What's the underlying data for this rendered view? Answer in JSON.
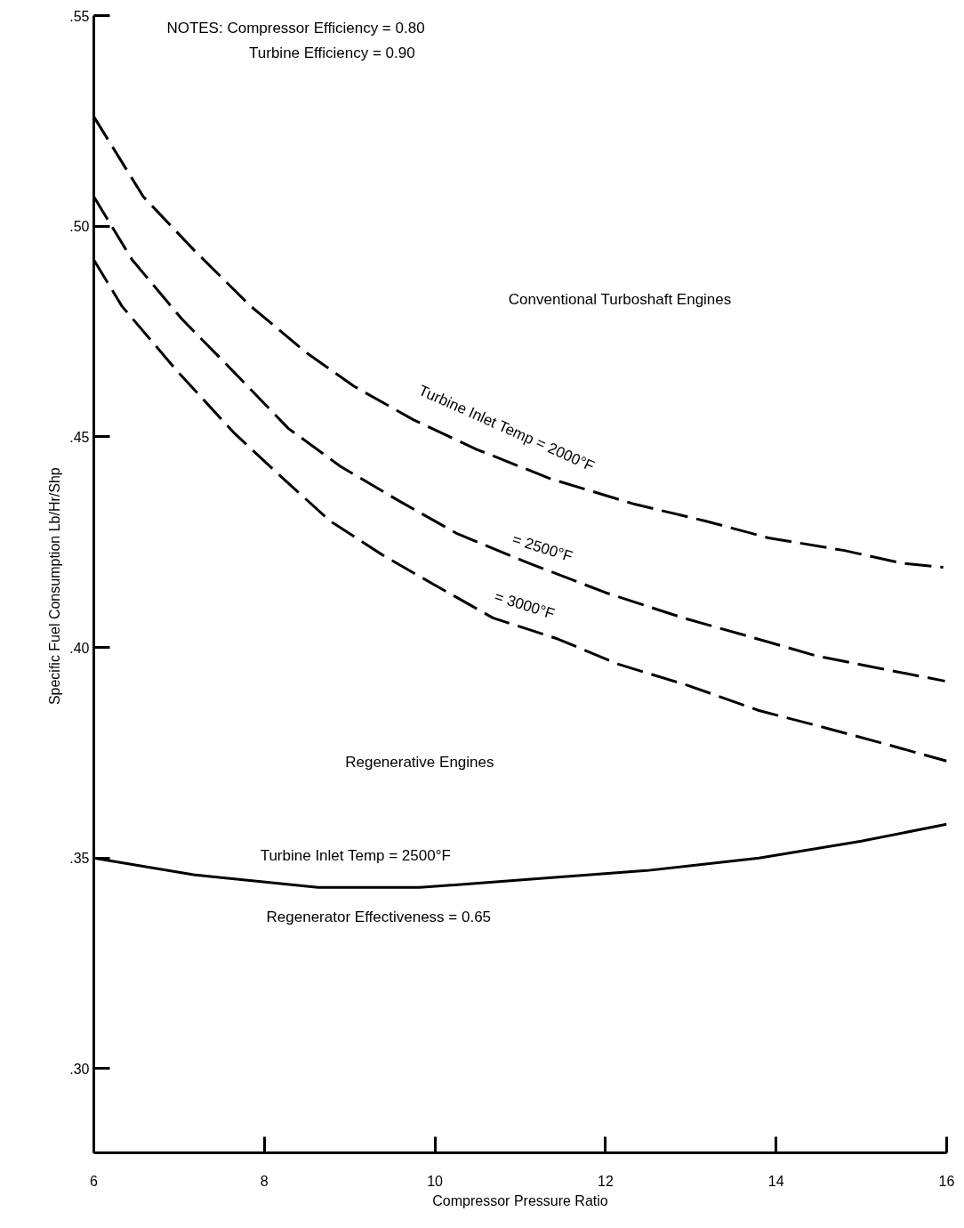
{
  "chart_data": {
    "type": "line",
    "xlabel": "Compressor Pressure Ratio",
    "ylabel": "Specific Fuel Consumption  Lb/Hr/Shp",
    "xlim": [
      6,
      16
    ],
    "ylim": [
      0.28,
      0.55
    ],
    "xticks": [
      6,
      8,
      10,
      12,
      14,
      16
    ],
    "yticks": [
      {
        "value": 0.3,
        "label": ".30"
      },
      {
        "value": 0.35,
        "label": ".35"
      },
      {
        "value": 0.4,
        "label": ".40"
      },
      {
        "value": 0.45,
        "label": ".45"
      },
      {
        "value": 0.5,
        "label": ".50"
      },
      {
        "value": 0.55,
        "label": ".55"
      }
    ],
    "grid": false,
    "marker": "none",
    "series": [
      {
        "name": "Turbine Inlet Temp = 2000°F",
        "color": "#000000",
        "line_style": "dashed",
        "x": [
          6,
          6.58,
          7.19,
          7.84,
          8.49,
          9.05,
          9.75,
          10.49,
          11.36,
          12.34,
          13.17,
          13.91,
          14.8,
          15.47,
          15.96
        ],
        "values": [
          0.526,
          0.507,
          0.494,
          0.481,
          0.47,
          0.462,
          0.454,
          0.447,
          0.44,
          0.434,
          0.43,
          0.426,
          0.423,
          0.42,
          0.419
        ]
      },
      {
        "name": "= 2500°F",
        "color": "#000000",
        "line_style": "dashed",
        "x": [
          6,
          6.45,
          7.03,
          7.66,
          8.28,
          8.89,
          9.56,
          10.26,
          11.1,
          12.0,
          12.91,
          13.61,
          14.47,
          15.22,
          15.98
        ],
        "values": [
          0.507,
          0.492,
          0.478,
          0.465,
          0.452,
          0.443,
          0.435,
          0.427,
          0.42,
          0.413,
          0.407,
          0.403,
          0.398,
          0.395,
          0.392
        ]
      },
      {
        "name": "= 3000°F",
        "color": "#000000",
        "line_style": "dashed",
        "x": [
          6,
          6.33,
          6.96,
          7.64,
          8.17,
          8.77,
          9.38,
          9.98,
          10.68,
          11.44,
          12.15,
          12.96,
          13.8,
          14.56,
          15.29,
          16
        ],
        "values": [
          0.492,
          0.481,
          0.466,
          0.451,
          0.441,
          0.43,
          0.422,
          0.415,
          0.407,
          0.402,
          0.396,
          0.391,
          0.385,
          0.381,
          0.377,
          0.373
        ]
      },
      {
        "name": "Turbine Inlet Temp = 2500°F",
        "color": "#000000",
        "line_style": "solid",
        "x": [
          6,
          7.17,
          8.63,
          9.82,
          11.16,
          12.48,
          13.8,
          15.0,
          16
        ],
        "values": [
          0.35,
          0.346,
          0.343,
          0.343,
          0.345,
          0.347,
          0.35,
          0.354,
          0.358
        ]
      }
    ],
    "annotations": [
      "NOTES:  Compressor Efficiency = 0.80",
      "Turbine Efficiency = 0.90",
      "Conventional Turboshaft Engines",
      "Regenerative Engines",
      "Regenerator Effectiveness = 0.65"
    ]
  }
}
